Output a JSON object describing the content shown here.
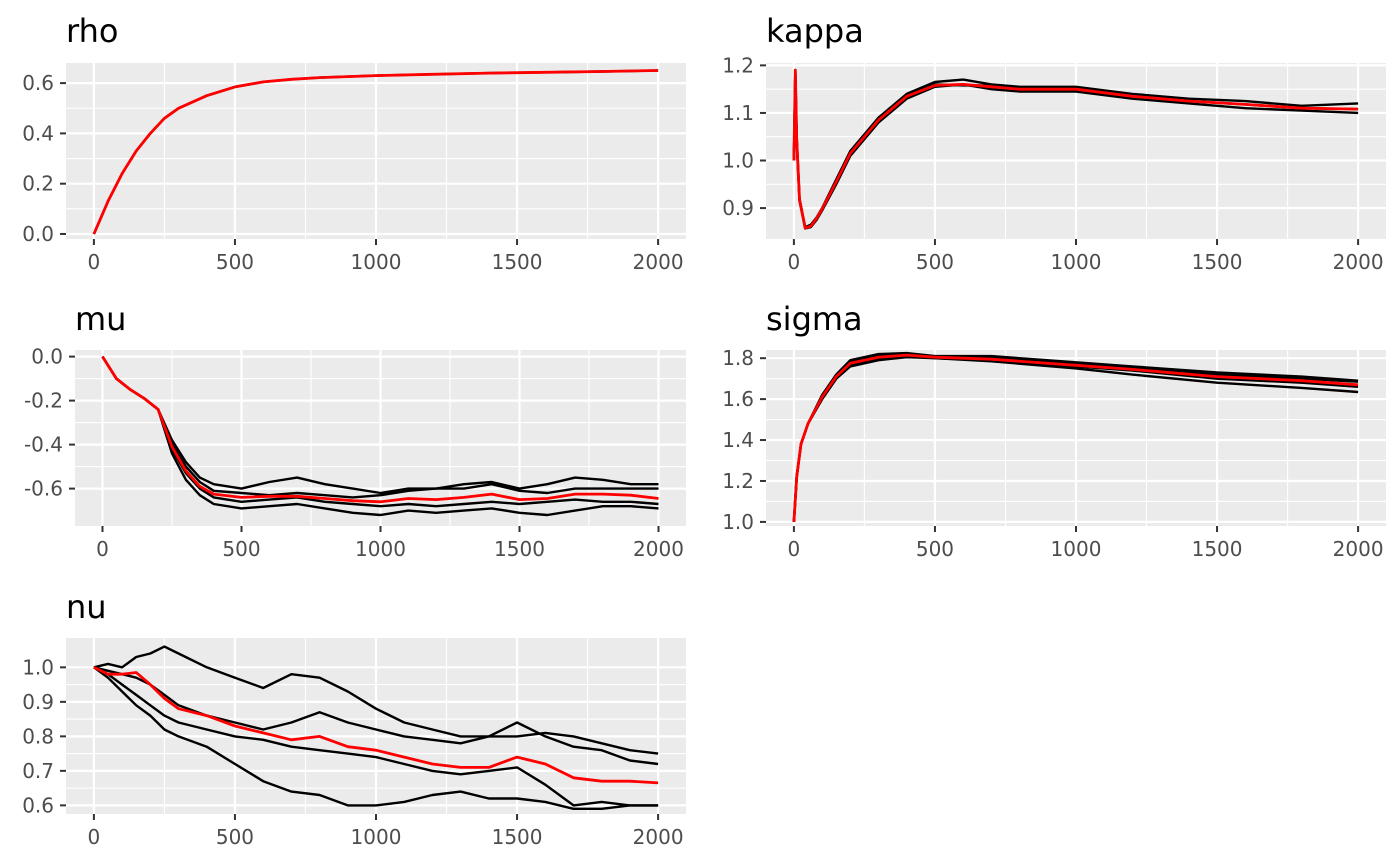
{
  "colors": {
    "chain": "#000000",
    "mean": "#ff0000",
    "panel_bg": "#ebebeb",
    "grid": "#ffffff"
  },
  "chart_data": [
    {
      "type": "line",
      "title": "rho",
      "xlim": [
        0,
        2000
      ],
      "ylim": [
        -0.02,
        0.68
      ],
      "xticks": [
        0,
        500,
        1000,
        1500,
        2000
      ],
      "yticks": [
        0.0,
        0.2,
        0.4,
        0.6
      ],
      "ytick_labels": [
        "0.0",
        "0.2",
        "0.4",
        "0.6"
      ],
      "x": [
        0,
        50,
        100,
        150,
        200,
        250,
        300,
        400,
        500,
        600,
        700,
        800,
        1000,
        1200,
        1400,
        1600,
        1800,
        2000
      ],
      "series": [
        {
          "values": [
            0.0,
            0.13,
            0.24,
            0.33,
            0.4,
            0.46,
            0.5,
            0.55,
            0.585,
            0.605,
            0.615,
            0.622,
            0.63,
            0.635,
            0.64,
            0.643,
            0.646,
            0.65
          ]
        },
        {
          "values": [
            0.0,
            0.13,
            0.24,
            0.33,
            0.4,
            0.46,
            0.5,
            0.55,
            0.585,
            0.605,
            0.615,
            0.622,
            0.63,
            0.635,
            0.64,
            0.643,
            0.646,
            0.65
          ],
          "is_mean": true
        }
      ]
    },
    {
      "type": "line",
      "title": "kappa",
      "xlim": [
        0,
        2000
      ],
      "ylim": [
        0.835,
        1.205
      ],
      "xticks": [
        0,
        500,
        1000,
        1500,
        2000
      ],
      "yticks": [
        0.9,
        1.0,
        1.1,
        1.2
      ],
      "ytick_labels": [
        "0.9",
        "1.0",
        "1.1",
        "1.2"
      ],
      "x": [
        0,
        5,
        10,
        20,
        40,
        60,
        80,
        100,
        150,
        200,
        300,
        400,
        500,
        600,
        700,
        800,
        1000,
        1200,
        1400,
        1600,
        1800,
        2000
      ],
      "series": [
        {
          "values": [
            1.0,
            1.19,
            1.05,
            0.92,
            0.86,
            0.865,
            0.88,
            0.9,
            0.96,
            1.02,
            1.09,
            1.14,
            1.165,
            1.17,
            1.16,
            1.155,
            1.155,
            1.14,
            1.13,
            1.125,
            1.115,
            1.12
          ]
        },
        {
          "values": [
            1.0,
            1.19,
            1.04,
            0.915,
            0.857,
            0.86,
            0.875,
            0.895,
            0.95,
            1.01,
            1.08,
            1.13,
            1.155,
            1.16,
            1.15,
            1.145,
            1.145,
            1.13,
            1.12,
            1.11,
            1.105,
            1.1
          ]
        },
        {
          "values": [
            1.0,
            1.19,
            1.045,
            0.918,
            0.858,
            0.862,
            0.878,
            0.898,
            0.955,
            1.015,
            1.085,
            1.135,
            1.16,
            1.158,
            1.158,
            1.15,
            1.15,
            1.135,
            1.125,
            1.118,
            1.11,
            1.108
          ]
        },
        {
          "values": [
            1.0,
            1.19,
            1.045,
            0.918,
            0.858,
            0.862,
            0.878,
            0.898,
            0.955,
            1.015,
            1.085,
            1.135,
            1.158,
            1.16,
            1.155,
            1.15,
            1.15,
            1.135,
            1.125,
            1.118,
            1.11,
            1.108
          ],
          "is_mean": true
        }
      ]
    },
    {
      "type": "line",
      "title": "mu",
      "xlim": [
        0,
        2000
      ],
      "ylim": [
        -0.77,
        0.03
      ],
      "xticks": [
        0,
        500,
        1000,
        1500,
        2000
      ],
      "yticks": [
        -0.6,
        -0.4,
        -0.2,
        0.0
      ],
      "ytick_labels": [
        "-0.6",
        "-0.4",
        "-0.2",
        "0.0"
      ],
      "x": [
        0,
        50,
        100,
        150,
        200,
        250,
        300,
        350,
        400,
        500,
        600,
        700,
        800,
        900,
        1000,
        1100,
        1200,
        1300,
        1400,
        1500,
        1600,
        1700,
        1800,
        1900,
        2000
      ],
      "series": [
        {
          "values": [
            0.0,
            -0.1,
            -0.15,
            -0.19,
            -0.24,
            -0.38,
            -0.48,
            -0.55,
            -0.58,
            -0.6,
            -0.57,
            -0.55,
            -0.58,
            -0.6,
            -0.62,
            -0.6,
            -0.6,
            -0.58,
            -0.57,
            -0.6,
            -0.58,
            -0.55,
            -0.56,
            -0.58,
            -0.58
          ]
        },
        {
          "values": [
            0.0,
            -0.1,
            -0.15,
            -0.19,
            -0.24,
            -0.4,
            -0.5,
            -0.57,
            -0.61,
            -0.62,
            -0.63,
            -0.62,
            -0.63,
            -0.64,
            -0.63,
            -0.61,
            -0.6,
            -0.6,
            -0.58,
            -0.61,
            -0.62,
            -0.6,
            -0.6,
            -0.6,
            -0.6
          ]
        },
        {
          "values": [
            0.0,
            -0.1,
            -0.15,
            -0.19,
            -0.24,
            -0.42,
            -0.53,
            -0.6,
            -0.64,
            -0.66,
            -0.65,
            -0.64,
            -0.66,
            -0.67,
            -0.68,
            -0.67,
            -0.68,
            -0.67,
            -0.66,
            -0.67,
            -0.66,
            -0.65,
            -0.66,
            -0.66,
            -0.67
          ]
        },
        {
          "values": [
            0.0,
            -0.1,
            -0.15,
            -0.19,
            -0.24,
            -0.44,
            -0.56,
            -0.63,
            -0.67,
            -0.69,
            -0.68,
            -0.67,
            -0.69,
            -0.71,
            -0.72,
            -0.7,
            -0.71,
            -0.7,
            -0.69,
            -0.71,
            -0.72,
            -0.7,
            -0.68,
            -0.68,
            -0.69
          ]
        },
        {
          "values": [
            0.0,
            -0.1,
            -0.15,
            -0.19,
            -0.24,
            -0.41,
            -0.52,
            -0.59,
            -0.625,
            -0.64,
            -0.635,
            -0.635,
            -0.645,
            -0.655,
            -0.66,
            -0.645,
            -0.65,
            -0.64,
            -0.625,
            -0.65,
            -0.645,
            -0.625,
            -0.625,
            -0.63,
            -0.645
          ],
          "is_mean": true
        }
      ]
    },
    {
      "type": "line",
      "title": "sigma",
      "xlim": [
        0,
        2000
      ],
      "ylim": [
        0.98,
        1.84
      ],
      "xticks": [
        0,
        500,
        1000,
        1500,
        2000
      ],
      "yticks": [
        1.0,
        1.2,
        1.4,
        1.6,
        1.8
      ],
      "ytick_labels": [
        "1.0",
        "1.2",
        "1.4",
        "1.6",
        "1.8"
      ],
      "x": [
        0,
        10,
        25,
        50,
        100,
        150,
        200,
        300,
        400,
        500,
        700,
        1000,
        1200,
        1500,
        1800,
        2000
      ],
      "series": [
        {
          "values": [
            1.0,
            1.22,
            1.38,
            1.48,
            1.62,
            1.72,
            1.79,
            1.82,
            1.825,
            1.81,
            1.81,
            1.78,
            1.76,
            1.73,
            1.71,
            1.69
          ]
        },
        {
          "values": [
            1.0,
            1.22,
            1.38,
            1.48,
            1.61,
            1.71,
            1.78,
            1.81,
            1.815,
            1.805,
            1.8,
            1.77,
            1.75,
            1.72,
            1.7,
            1.685
          ]
        },
        {
          "values": [
            1.0,
            1.22,
            1.38,
            1.48,
            1.6,
            1.7,
            1.77,
            1.8,
            1.81,
            1.8,
            1.79,
            1.76,
            1.74,
            1.7,
            1.68,
            1.66
          ]
        },
        {
          "values": [
            1.0,
            1.22,
            1.38,
            1.48,
            1.6,
            1.7,
            1.76,
            1.79,
            1.805,
            1.8,
            1.785,
            1.75,
            1.72,
            1.68,
            1.655,
            1.635
          ]
        },
        {
          "values": [
            1.0,
            1.22,
            1.38,
            1.48,
            1.61,
            1.71,
            1.775,
            1.805,
            1.815,
            1.805,
            1.795,
            1.765,
            1.745,
            1.71,
            1.69,
            1.67
          ],
          "is_mean": true
        }
      ]
    },
    {
      "type": "line",
      "title": "nu",
      "xlim": [
        0,
        2000
      ],
      "ylim": [
        0.575,
        1.085
      ],
      "xticks": [
        0,
        500,
        1000,
        1500,
        2000
      ],
      "yticks": [
        0.6,
        0.7,
        0.8,
        0.9,
        1.0
      ],
      "ytick_labels": [
        "0.6",
        "0.7",
        "0.8",
        "0.9",
        "1.0"
      ],
      "x": [
        0,
        50,
        100,
        150,
        200,
        250,
        300,
        400,
        500,
        600,
        700,
        800,
        900,
        1000,
        1100,
        1200,
        1300,
        1400,
        1500,
        1600,
        1700,
        1800,
        1900,
        2000
      ],
      "series": [
        {
          "values": [
            1.0,
            1.01,
            1.0,
            1.03,
            1.04,
            1.06,
            1.04,
            1.0,
            0.97,
            0.94,
            0.98,
            0.97,
            0.93,
            0.88,
            0.84,
            0.82,
            0.8,
            0.8,
            0.8,
            0.81,
            0.8,
            0.78,
            0.76,
            0.75
          ]
        },
        {
          "values": [
            1.0,
            0.99,
            0.98,
            0.97,
            0.95,
            0.92,
            0.89,
            0.86,
            0.84,
            0.82,
            0.84,
            0.87,
            0.84,
            0.82,
            0.8,
            0.79,
            0.78,
            0.8,
            0.84,
            0.8,
            0.77,
            0.76,
            0.73,
            0.72
          ]
        },
        {
          "values": [
            1.0,
            0.98,
            0.95,
            0.92,
            0.89,
            0.86,
            0.84,
            0.82,
            0.8,
            0.79,
            0.77,
            0.76,
            0.75,
            0.74,
            0.72,
            0.7,
            0.69,
            0.7,
            0.71,
            0.66,
            0.6,
            0.61,
            0.6,
            0.6
          ]
        },
        {
          "values": [
            1.0,
            0.97,
            0.93,
            0.89,
            0.86,
            0.82,
            0.8,
            0.77,
            0.72,
            0.67,
            0.64,
            0.63,
            0.6,
            0.6,
            0.61,
            0.63,
            0.64,
            0.62,
            0.62,
            0.61,
            0.59,
            0.59,
            0.6,
            0.6
          ]
        },
        {
          "values": [
            1.0,
            0.98,
            0.98,
            0.985,
            0.95,
            0.91,
            0.88,
            0.86,
            0.83,
            0.81,
            0.79,
            0.8,
            0.77,
            0.76,
            0.74,
            0.72,
            0.71,
            0.71,
            0.74,
            0.72,
            0.68,
            0.67,
            0.67,
            0.665
          ],
          "is_mean": true
        }
      ]
    }
  ]
}
